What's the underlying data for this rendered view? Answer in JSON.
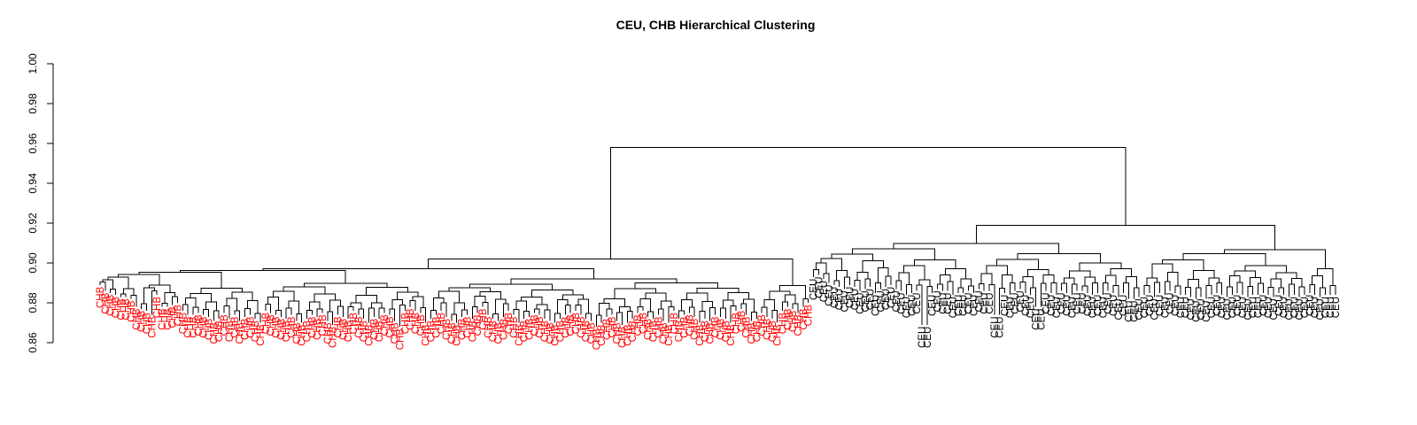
{
  "chart_data": {
    "type": "dendrogram",
    "title": "CEU, CHB Hierarchical Clustering",
    "xlabel": "",
    "ylabel": "",
    "ylim": [
      0.86,
      1.0
    ],
    "yticks": [
      "0.86",
      "0.88",
      "0.90",
      "0.92",
      "0.94",
      "0.96",
      "0.98",
      "1.00"
    ],
    "grid": false,
    "root_height": 0.958,
    "groups": [
      {
        "label": "CHB",
        "color": "#ff0000",
        "leaf_count": 138,
        "merge_height": 0.902,
        "leaf_heights": [
          0.889,
          0.886,
          0.885,
          0.884,
          0.883,
          0.883,
          0.882,
          0.878,
          0.877,
          0.876,
          0.874,
          0.884,
          0.878,
          0.878,
          0.879,
          0.88,
          0.876,
          0.874,
          0.874,
          0.875,
          0.874,
          0.873,
          0.871,
          0.872,
          0.875,
          0.872,
          0.874,
          0.871,
          0.873,
          0.874,
          0.872,
          0.87,
          0.876,
          0.875,
          0.874,
          0.873,
          0.872,
          0.874,
          0.871,
          0.87,
          0.872,
          0.874,
          0.873,
          0.875,
          0.871,
          0.869,
          0.874,
          0.873,
          0.872,
          0.876,
          0.874,
          0.872,
          0.87,
          0.873,
          0.872,
          0.875,
          0.874,
          0.871,
          0.868,
          0.876,
          0.878,
          0.876,
          0.875,
          0.87,
          0.872,
          0.874,
          0.876,
          0.873,
          0.871,
          0.87,
          0.873,
          0.874,
          0.872,
          0.875,
          0.878,
          0.874,
          0.872,
          0.871,
          0.873,
          0.876,
          0.874,
          0.87,
          0.872,
          0.873,
          0.875,
          0.874,
          0.872,
          0.871,
          0.87,
          0.872,
          0.874,
          0.875,
          0.876,
          0.874,
          0.872,
          0.871,
          0.868,
          0.87,
          0.873,
          0.874,
          0.871,
          0.869,
          0.87,
          0.872,
          0.875,
          0.876,
          0.873,
          0.872,
          0.874,
          0.871,
          0.87,
          0.876,
          0.872,
          0.874,
          0.875,
          0.873,
          0.87,
          0.872,
          0.871,
          0.874,
          0.873,
          0.872,
          0.87,
          0.876,
          0.877,
          0.874,
          0.871,
          0.872,
          0.875,
          0.873,
          0.872,
          0.87,
          0.876,
          0.878,
          0.877,
          0.875,
          0.878,
          0.88
        ]
      },
      {
        "label": "CEU",
        "color": "#000000",
        "leaf_count": 102,
        "merge_height": 0.919,
        "leaf_heights": [
          0.893,
          0.894,
          0.892,
          0.89,
          0.889,
          0.888,
          0.887,
          0.889,
          0.888,
          0.886,
          0.887,
          0.888,
          0.885,
          0.887,
          0.888,
          0.889,
          0.887,
          0.886,
          0.884,
          0.885,
          0.886,
          0.869,
          0.869,
          0.885,
          0.887,
          0.886,
          0.886,
          0.884,
          0.885,
          0.885,
          0.886,
          0.885,
          0.887,
          0.886,
          0.886,
          0.874,
          0.874,
          0.885,
          0.884,
          0.886,
          0.887,
          0.885,
          0.884,
          0.878,
          0.878,
          0.886,
          0.885,
          0.884,
          0.886,
          0.885,
          0.884,
          0.886,
          0.886,
          0.885,
          0.884,
          0.885,
          0.884,
          0.886,
          0.885,
          0.883,
          0.885,
          0.882,
          0.882,
          0.883,
          0.884,
          0.885,
          0.883,
          0.885,
          0.884,
          0.886,
          0.885,
          0.884,
          0.884,
          0.883,
          0.882,
          0.883,
          0.882,
          0.884,
          0.885,
          0.884,
          0.883,
          0.884,
          0.885,
          0.884,
          0.883,
          0.884,
          0.884,
          0.885,
          0.884,
          0.883,
          0.885,
          0.884,
          0.883,
          0.884,
          0.883,
          0.884,
          0.885,
          0.884,
          0.883,
          0.884,
          0.884,
          0.884
        ]
      }
    ]
  }
}
